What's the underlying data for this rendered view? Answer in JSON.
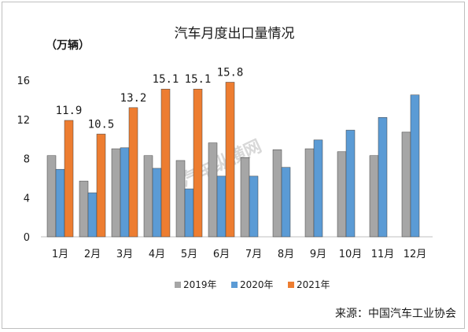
{
  "chart_data": {
    "type": "bar",
    "title": "汽车月度出口量情况",
    "unit_label": "（万辆）",
    "categories": [
      "1月",
      "2月",
      "3月",
      "4月",
      "5月",
      "6月",
      "7月",
      "8月",
      "9月",
      "10月",
      "11月",
      "12月"
    ],
    "series": [
      {
        "name": "2019年",
        "color": "#a6a6a6",
        "values": [
          8.3,
          5.7,
          9.0,
          8.3,
          7.8,
          9.6,
          8.1,
          8.9,
          9.0,
          8.7,
          8.3,
          10.7
        ]
      },
      {
        "name": "2020年",
        "color": "#5b9bd5",
        "values": [
          6.9,
          4.5,
          9.1,
          7.0,
          4.9,
          6.2,
          6.2,
          7.1,
          9.9,
          10.9,
          12.2,
          14.5
        ]
      },
      {
        "name": "2021年",
        "color": "#ed7d31",
        "values": [
          11.9,
          10.5,
          13.2,
          15.1,
          15.1,
          15.8,
          null,
          null,
          null,
          null,
          null,
          null
        ],
        "data_labels": [
          "11.9",
          "10.5",
          "13.2",
          "15.1",
          "15.1",
          "15.8"
        ]
      }
    ],
    "ylim": [
      0,
      16
    ],
    "yticks": [
      0,
      4,
      8,
      12,
      16
    ],
    "grid": false,
    "legend_position": "bottom"
  },
  "watermark": "汽车纵横网",
  "source_text": "来源：中国汽车工业协会"
}
